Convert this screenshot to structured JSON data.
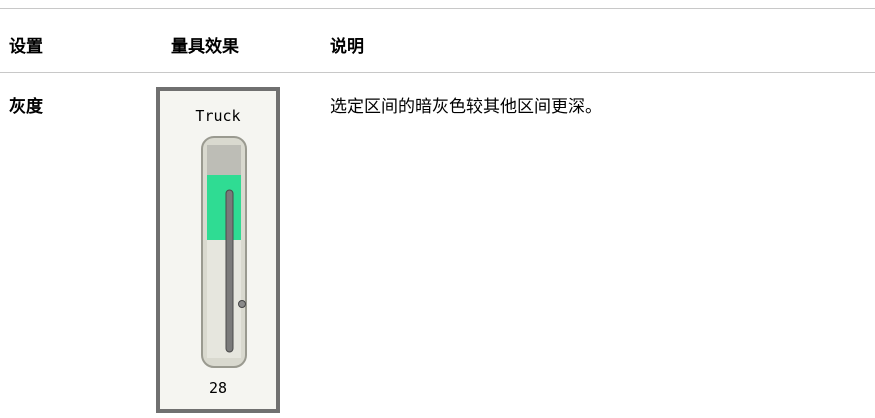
{
  "table": {
    "headers": [
      "设置",
      "量具效果",
      "说明"
    ],
    "rows": [
      {
        "setting": "灰度",
        "gauge": {
          "label": "Truck",
          "value": 28
        },
        "description": "选定区间的暗灰色较其他区间更深。"
      }
    ]
  }
}
